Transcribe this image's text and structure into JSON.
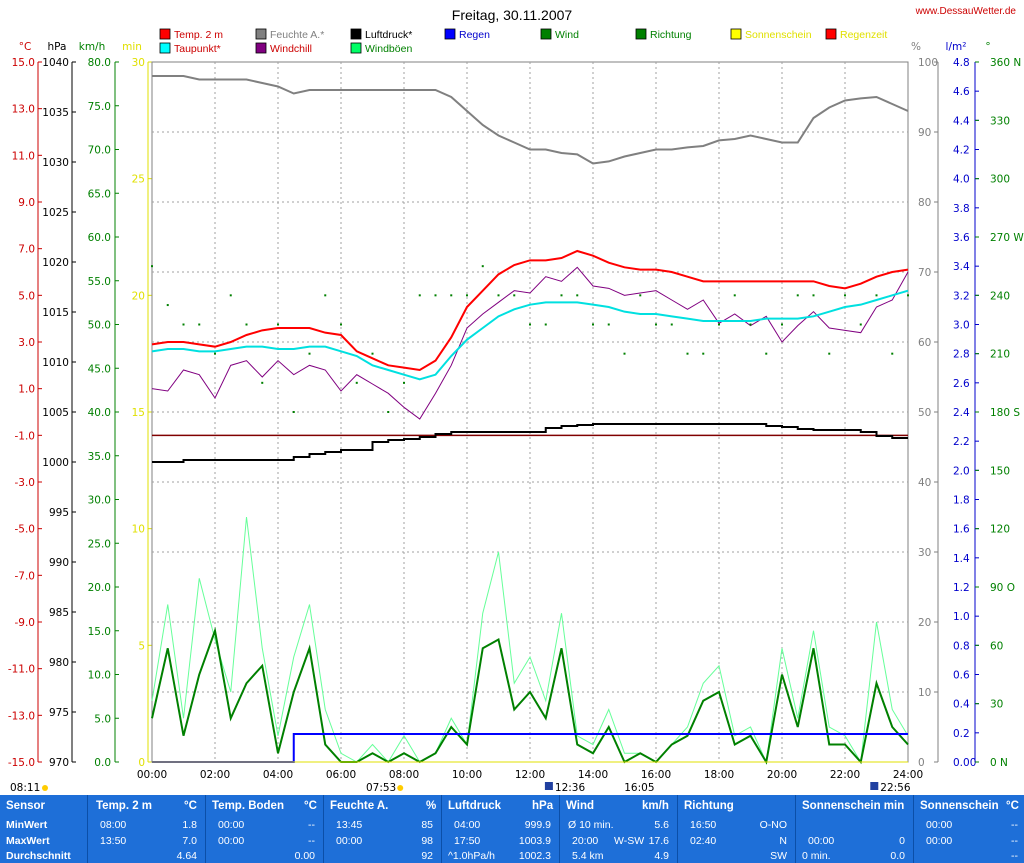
{
  "title": "Freitag, 30.11.2007",
  "site": "www.DessauWetter.de",
  "legend": [
    {
      "label": "Temp. 2 m",
      "color": "#ff0000",
      "text": "#cc0000"
    },
    {
      "label": "Taupunkt*",
      "color": "#00ffff",
      "text": "#cc0000"
    },
    {
      "label": "Feuchte A.*",
      "color": "#808080",
      "text": "#808080"
    },
    {
      "label": "Windchill",
      "color": "#800080",
      "text": "#cc0000"
    },
    {
      "label": "Luftdruck*",
      "color": "#000000",
      "text": "#000000"
    },
    {
      "label": "Windböen",
      "color": "#00ff66",
      "text": "#008000"
    },
    {
      "label": "Regen",
      "color": "#0000ff",
      "text": "#0000cc"
    },
    {
      "label": "Wind",
      "color": "#008000",
      "text": "#008000"
    },
    {
      "label": "Richtung",
      "color": "#008000",
      "text": "#008000"
    },
    {
      "label": "Sonnenschein",
      "color": "#ffff00",
      "text": "#e0e000"
    },
    {
      "label": "Regenzeit",
      "color": "#ff0000",
      "text": "#e0e000"
    }
  ],
  "axis_units": {
    "temp": "°C",
    "press": "hPa",
    "wind": "km/h",
    "sun": "min",
    "hum": "%",
    "rain": "l/m²",
    "dir": "°"
  },
  "axes": {
    "temp": [
      "15.0",
      "13.0",
      "11.0",
      "9.0",
      "7.0",
      "5.0",
      "3.0",
      "1.0",
      "-1.0",
      "-3.0",
      "-5.0",
      "-7.0",
      "-9.0",
      "-11.0",
      "-13.0",
      "-15.0"
    ],
    "press": [
      "1040",
      "1035",
      "1030",
      "1025",
      "1020",
      "1015",
      "1010",
      "1005",
      "1000",
      "995",
      "990",
      "985",
      "980",
      "975",
      "970"
    ],
    "wind": [
      "80.0",
      "75.0",
      "70.0",
      "65.0",
      "60.0",
      "55.0",
      "50.0",
      "45.0",
      "40.0",
      "35.0",
      "30.0",
      "25.0",
      "20.0",
      "15.0",
      "10.0",
      "5.0",
      "0.0"
    ],
    "sun": [
      "30",
      "25",
      "20",
      "15",
      "10",
      "5",
      "0"
    ],
    "hum": [
      "100",
      "90",
      "80",
      "70",
      "60",
      "50",
      "40",
      "30",
      "20",
      "10",
      "0"
    ],
    "rain": [
      "4.8",
      "4.6",
      "4.4",
      "4.2",
      "4.0",
      "3.8",
      "3.6",
      "3.4",
      "3.2",
      "3.0",
      "2.8",
      "2.6",
      "2.4",
      "2.2",
      "2.0",
      "1.8",
      "1.6",
      "1.4",
      "1.2",
      "1.0",
      "0.8",
      "0.6",
      "0.4",
      "0.2",
      "0.00"
    ],
    "dir": [
      "360 N",
      "330",
      "300",
      "270 W",
      "240",
      "210",
      "180 S",
      "150",
      "120",
      "90 O",
      "60",
      "30",
      "0 N"
    ],
    "time": [
      "00:00",
      "02:00",
      "04:00",
      "06:00",
      "08:00",
      "10:00",
      "12:00",
      "14:00",
      "16:00",
      "18:00",
      "20:00",
      "22:00",
      "24:00"
    ]
  },
  "sun_markers": {
    "rise_left": "08:11",
    "sunrise": "07:53",
    "solar_noon": "12:36",
    "sunset": "16:05",
    "moon": "22:56"
  },
  "chart_data": {
    "type": "line",
    "title": "Freitag, 30.11.2007",
    "x_hours": [
      0,
      0.5,
      1,
      1.5,
      2,
      2.5,
      3,
      3.5,
      4,
      4.5,
      5,
      5.5,
      6,
      6.5,
      7,
      7.5,
      8,
      8.5,
      9,
      9.5,
      10,
      10.5,
      11,
      11.5,
      12,
      12.5,
      13,
      13.5,
      14,
      14.5,
      15,
      15.5,
      16,
      16.5,
      17,
      17.5,
      18,
      18.5,
      19,
      19.5,
      20,
      20.5,
      21,
      21.5,
      22,
      22.5,
      23,
      23.5,
      24
    ],
    "series": [
      {
        "name": "Temp. 2 m",
        "unit": "°C",
        "values": [
          2.9,
          3.0,
          3.0,
          2.9,
          2.8,
          3.0,
          3.3,
          3.5,
          3.6,
          3.6,
          3.6,
          3.4,
          3.3,
          2.6,
          2.3,
          2.0,
          1.9,
          1.8,
          2.2,
          3.2,
          4.5,
          5.2,
          5.9,
          6.3,
          6.5,
          6.5,
          6.6,
          6.9,
          6.7,
          6.4,
          6.2,
          6.1,
          6.1,
          6.0,
          5.8,
          5.6,
          5.6,
          5.6,
          5.6,
          5.6,
          5.6,
          5.6,
          5.6,
          5.4,
          5.3,
          5.5,
          5.8,
          6.0,
          6.1
        ]
      },
      {
        "name": "Taupunkt*",
        "unit": "°C",
        "values": [
          2.6,
          2.7,
          2.7,
          2.6,
          2.6,
          2.7,
          2.8,
          2.8,
          2.7,
          2.7,
          2.8,
          2.8,
          2.6,
          2.4,
          2.0,
          1.8,
          1.6,
          1.4,
          1.6,
          2.4,
          3.1,
          3.6,
          4.1,
          4.4,
          4.6,
          4.7,
          4.7,
          4.7,
          4.6,
          4.5,
          4.3,
          4.2,
          4.2,
          4.1,
          4.0,
          3.9,
          3.9,
          3.9,
          3.9,
          4.0,
          4.0,
          4.0,
          4.1,
          4.3,
          4.5,
          4.6,
          4.8,
          5.0,
          5.2
        ]
      },
      {
        "name": "Windchill",
        "unit": "°C",
        "values": [
          1.0,
          0.9,
          1.8,
          1.6,
          0.6,
          2.0,
          2.2,
          1.5,
          2.2,
          1.6,
          2.0,
          1.8,
          0.9,
          1.6,
          1.2,
          0.8,
          0.2,
          -0.3,
          0.8,
          2.0,
          3.6,
          4.2,
          4.7,
          5.2,
          5.1,
          5.8,
          5.6,
          6.2,
          5.4,
          5.3,
          5.0,
          5.1,
          5.2,
          4.8,
          4.4,
          4.8,
          3.8,
          4.2,
          3.7,
          4.1,
          3.0,
          3.7,
          4.3,
          3.6,
          3.5,
          3.4,
          4.5,
          4.8,
          6.0
        ]
      },
      {
        "name": "Feuchte A.*",
        "unit": "%",
        "values": [
          98,
          98,
          98,
          97.5,
          97.5,
          97.5,
          97.5,
          97,
          96.5,
          95.5,
          96,
          96,
          96,
          96,
          96,
          96,
          96,
          96,
          96,
          95,
          93,
          91,
          89.5,
          88.5,
          87.5,
          87.5,
          87,
          86.8,
          85.5,
          85.8,
          86.5,
          87,
          87.5,
          87.5,
          87.8,
          88,
          88.8,
          89,
          89.5,
          89,
          88.5,
          88.5,
          92,
          93.5,
          94.5,
          94.8,
          95,
          94,
          93
        ]
      },
      {
        "name": "Luftdruck*",
        "unit": "hPa",
        "values": [
          1000.0,
          1000.0,
          1000.2,
          1000.2,
          1000.2,
          1000.2,
          1000.2,
          1000.2,
          1000.2,
          1000.5,
          1000.8,
          1001.0,
          1001.2,
          1001.2,
          1002.0,
          1002.2,
          1002.3,
          1002.5,
          1002.8,
          1003.0,
          1003.0,
          1003.0,
          1003.0,
          1003.0,
          1003.0,
          1003.4,
          1003.6,
          1003.7,
          1003.8,
          1003.8,
          1003.8,
          1003.8,
          1003.8,
          1003.8,
          1003.8,
          1003.8,
          1003.8,
          1003.8,
          1003.8,
          1003.6,
          1003.5,
          1003.3,
          1003.2,
          1003.2,
          1003.2,
          1003.0,
          1002.6,
          1002.4,
          1002.4
        ]
      },
      {
        "name": "Windböen",
        "unit": "km/h",
        "values": [
          7,
          18,
          5,
          21,
          14,
          8,
          28,
          13,
          3,
          12,
          18,
          6,
          1,
          0,
          2,
          0,
          3,
          0,
          1,
          5,
          2,
          17,
          24,
          9,
          12,
          7,
          17,
          3,
          2,
          6,
          1,
          1,
          0,
          2,
          4,
          9,
          11,
          3,
          4,
          0,
          13,
          5,
          15,
          4,
          3,
          0,
          16,
          6,
          3
        ]
      },
      {
        "name": "Wind",
        "unit": "km/h",
        "values": [
          5,
          13,
          3,
          10,
          15,
          5,
          9,
          11,
          1,
          8,
          13,
          2,
          0,
          0,
          1,
          0,
          1,
          0,
          1,
          4,
          2,
          13,
          14,
          6,
          8,
          5,
          13,
          2,
          1,
          4,
          0,
          1,
          0,
          2,
          3,
          7,
          8,
          2,
          3,
          0,
          10,
          4,
          13,
          2,
          2,
          0,
          9,
          4,
          2
        ]
      },
      {
        "name": "Regen",
        "unit": "l/m²",
        "values": [
          0,
          0,
          0,
          0,
          0,
          0,
          0,
          0,
          0,
          0.2,
          0.2,
          0.2,
          0.2,
          0.2,
          0.2,
          0.2,
          0.2,
          0.2,
          0.2,
          0.2,
          0.2,
          0.2,
          0.2,
          0.2,
          0.2,
          0.2,
          0.2,
          0.2,
          0.2,
          0.2,
          0.2,
          0.2,
          0.2,
          0.2,
          0.2,
          0.2,
          0.2,
          0.2,
          0.2,
          0.2,
          0.2,
          0.2,
          0.2,
          0.2,
          0.2,
          0.2,
          0.2,
          0.2,
          0.2
        ]
      },
      {
        "name": "Richtung",
        "unit": "°",
        "values": [
          255,
          235,
          225,
          225,
          210,
          240,
          225,
          195,
          225,
          180,
          210,
          240,
          225,
          195,
          210,
          180,
          195,
          240,
          240,
          240,
          240,
          255,
          240,
          240,
          225,
          225,
          240,
          240,
          225,
          225,
          210,
          240,
          225,
          225,
          210,
          210,
          225,
          240,
          225,
          210,
          225,
          240,
          240,
          210,
          240,
          225,
          240,
          210,
          240
        ]
      },
      {
        "name": "Sonnenschein",
        "unit": "min",
        "values": [
          0,
          0,
          0,
          0,
          0,
          0,
          0,
          0,
          0,
          0,
          0,
          0,
          0,
          0,
          0,
          0,
          0,
          0,
          0,
          0,
          0,
          0,
          0,
          0,
          0,
          0,
          0,
          0,
          0,
          0,
          0,
          0,
          0,
          0,
          0,
          0,
          0,
          0,
          0,
          0,
          0,
          0,
          0,
          0,
          0,
          0,
          0,
          0,
          0
        ]
      }
    ],
    "xlabel": "",
    "grid": true
  },
  "stats": {
    "headers": {
      "sensor": "Sensor",
      "temp": "Temp. 2 m",
      "temp_u": "°C",
      "boden": "Temp. Boden",
      "boden_u": "°C",
      "feuchte": "Feuchte A.",
      "feuchte_u": "%",
      "druck": "Luftdruck",
      "druck_u": "hPa",
      "wind": "Wind",
      "wind_u": "km/h",
      "richtung": "Richtung",
      "sunmin": "Sonnenschein min",
      "sunc": "Sonnenschein",
      "sunc_u": "°C"
    },
    "rows": {
      "min": "MinWert",
      "max": "MaxWert",
      "avg": "Durchschnitt"
    },
    "temp": {
      "min_t": "08:00",
      "min_v": "1.8",
      "max_t": "13:50",
      "max_v": "7.0",
      "avg": "4.64"
    },
    "boden": {
      "min_t": "00:00",
      "min_v": "--",
      "max_t": "00:00",
      "max_v": "--",
      "avg": "0.00"
    },
    "feuchte": {
      "min_t": "13:45",
      "min_v": "85",
      "max_t": "00:00",
      "max_v": "98",
      "avg": "92"
    },
    "druck": {
      "min_t": "04:00",
      "min_v": "999.9",
      "max_t": "17:50",
      "max_v": "1003.9",
      "avg_l": "^1.0hPa/h",
      "avg": "1002.3"
    },
    "wind": {
      "min_l": "Ø 10 min.",
      "min_v": "5.6",
      "max_t": "20:00",
      "max_d": "W-SW",
      "max_v": "17.6",
      "avg_l": "5.4 km",
      "avg": "4.9"
    },
    "richtung": {
      "min_t": "16:50",
      "min_v": "O-NO",
      "max_t": "02:40",
      "max_v": "N",
      "avg": "SW"
    },
    "sunmin": {
      "min_t": "",
      "min_v": "",
      "max_t": "00:00",
      "max_v": "0",
      "avg_l": "0 min.",
      "avg": "0.0"
    },
    "sunc": {
      "min_t": "00:00",
      "min_v": "--",
      "max_t": "00:00",
      "max_v": "--",
      "avg": "--"
    }
  }
}
